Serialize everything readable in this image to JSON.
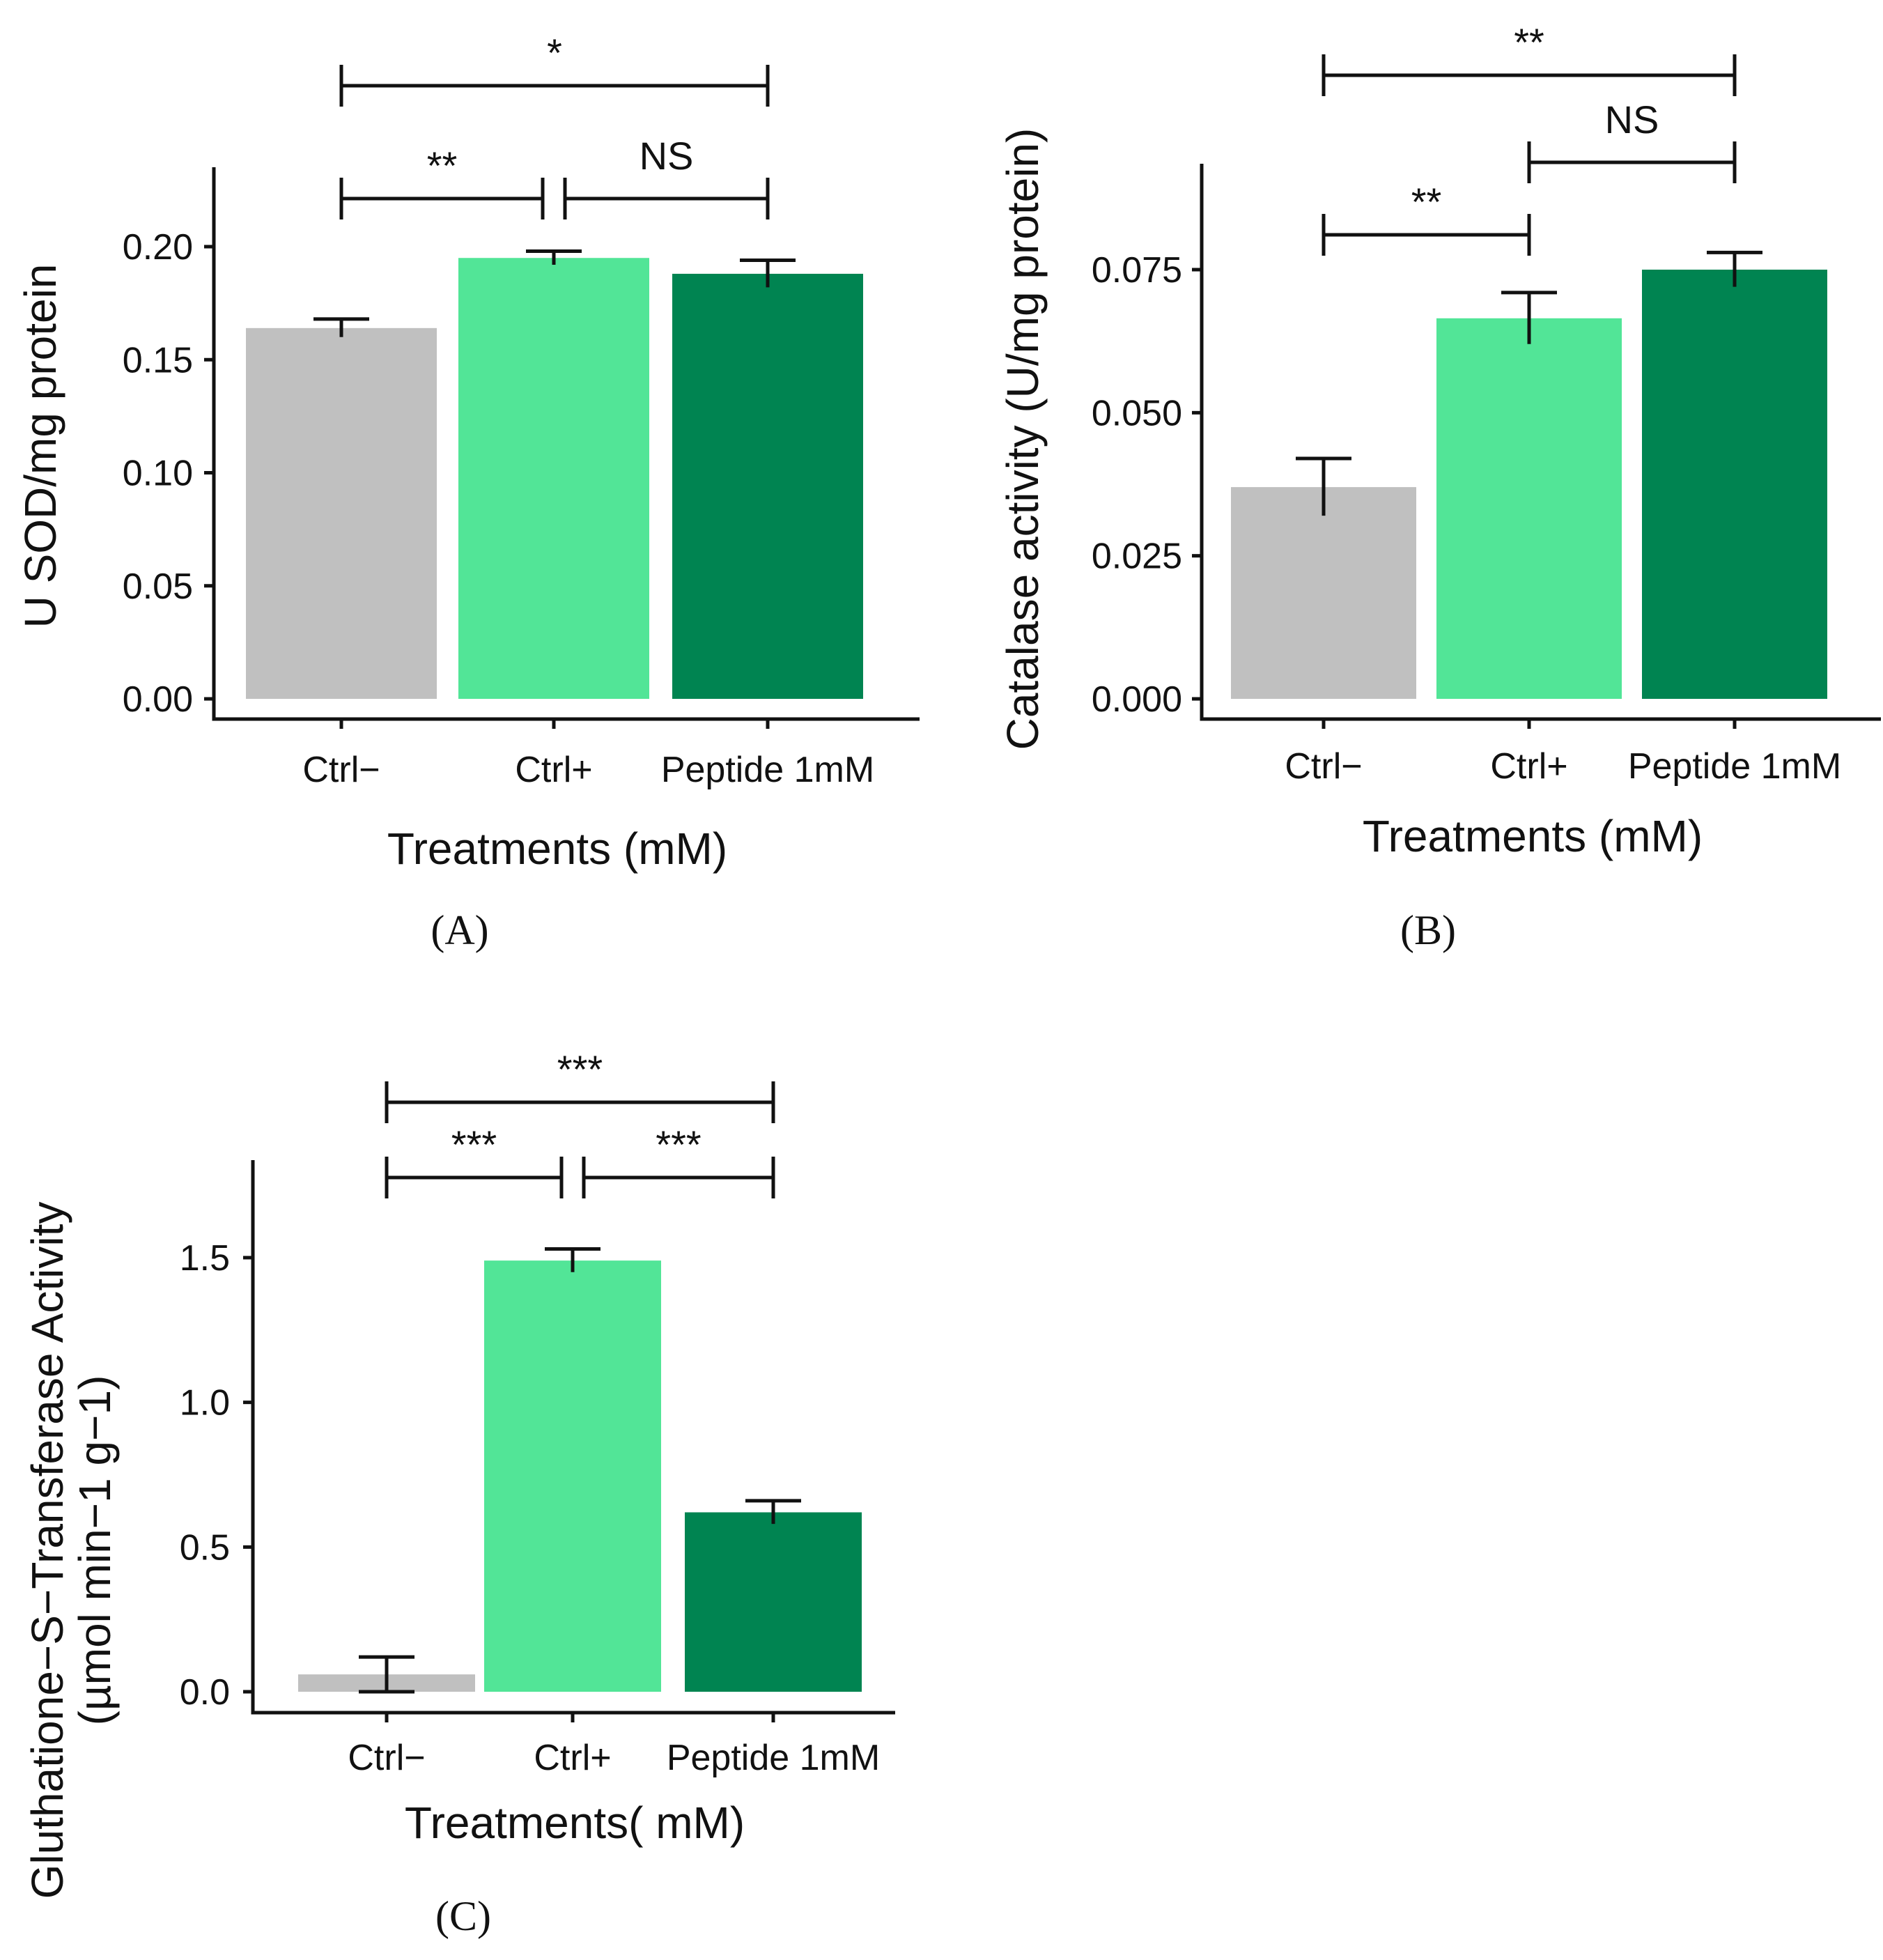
{
  "chart_data": [
    {
      "id": "A",
      "type": "bar",
      "panel_label": "(A)",
      "categories": [
        "Ctrl−",
        "Ctrl+",
        "Peptide 1mM"
      ],
      "values": [
        0.164,
        0.195,
        0.188
      ],
      "errors": [
        0.004,
        0.003,
        0.006
      ],
      "colors": [
        "#c0c0c0",
        "#52e597",
        "#008451"
      ],
      "xlabel": "Treatments (mM)",
      "ylabel": [
        "U SOD/mg protein"
      ],
      "ylim": [
        0,
        0.235
      ],
      "yticks": [
        0.0,
        0.05,
        0.1,
        0.15,
        0.2
      ],
      "ytick_labels": [
        "0.00",
        "0.05",
        "0.10",
        "0.15",
        "0.20"
      ],
      "annotations": [
        {
          "from": 0,
          "to": 1,
          "level": 1,
          "label": "**"
        },
        {
          "from": 1,
          "to": 2,
          "level": 1,
          "label": "NS"
        },
        {
          "from": 0,
          "to": 2,
          "level": 2,
          "label": "*"
        }
      ]
    },
    {
      "id": "B",
      "type": "bar",
      "panel_label": "(B)",
      "categories": [
        "Ctrl−",
        "Ctrl+",
        "Peptide 1mM"
      ],
      "values": [
        0.037,
        0.0665,
        0.075
      ],
      "errors": [
        0.005,
        0.0045,
        0.003
      ],
      "colors": [
        "#c0c0c0",
        "#52e597",
        "#008451"
      ],
      "xlabel": "Treatments (mM)",
      "ylabel": [
        "Catalase activity (U/mg protein)"
      ],
      "ylim": [
        0,
        0.093
      ],
      "yticks": [
        0.0,
        0.025,
        0.05,
        0.075
      ],
      "ytick_labels": [
        "0.000",
        "0.025",
        "0.050",
        "0.075"
      ],
      "annotations": [
        {
          "from": 0,
          "to": 1,
          "level": 1,
          "label": "**"
        },
        {
          "from": 1,
          "to": 2,
          "level": 2,
          "label": "NS"
        },
        {
          "from": 0,
          "to": 2,
          "level": 3,
          "label": "**"
        }
      ]
    },
    {
      "id": "C",
      "type": "bar",
      "panel_label": "(C)",
      "categories": [
        "Ctrl−",
        "Ctrl+",
        "Peptide 1mM"
      ],
      "values": [
        0.06,
        1.49,
        0.62
      ],
      "errors": [
        0.06,
        0.04,
        0.04
      ],
      "colors": [
        "#c0c0c0",
        "#52e597",
        "#008451"
      ],
      "xlabel": "Treatments( mM)",
      "ylabel": [
        "Gluthatione−S−Transferase Activity",
        "(µmol min−1 g−1)"
      ],
      "ylim": [
        0,
        1.8
      ],
      "yticks": [
        0.0,
        0.5,
        1.0,
        1.5
      ],
      "ytick_labels": [
        "0.0",
        "0.5",
        "1.0",
        "1.5"
      ],
      "annotations": [
        {
          "from": 0,
          "to": 1,
          "level": 1,
          "label": "***"
        },
        {
          "from": 1,
          "to": 2,
          "level": 1,
          "label": "***"
        },
        {
          "from": 0,
          "to": 2,
          "level": 2,
          "label": "***"
        }
      ]
    }
  ]
}
